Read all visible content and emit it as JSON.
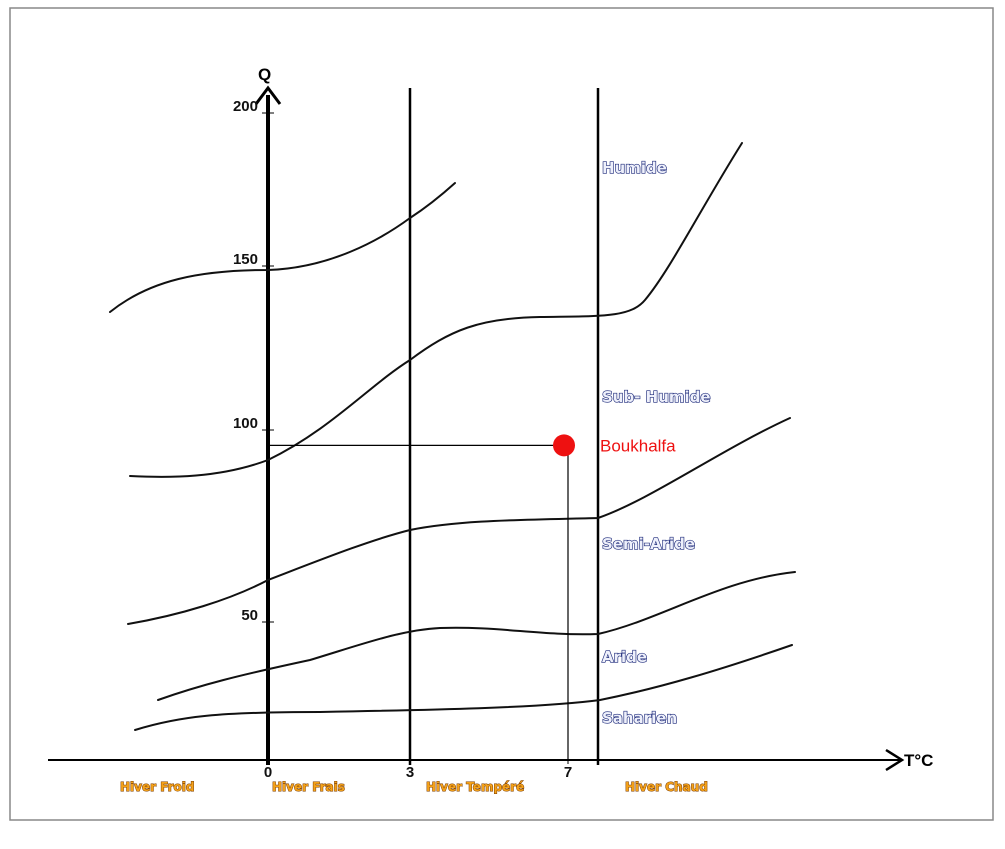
{
  "axes": {
    "y_label": "Q",
    "x_label": "T°C",
    "y_ticks": [
      50,
      100,
      150,
      200
    ],
    "x_ticks": [
      0,
      3,
      7
    ]
  },
  "zones": [
    "Humide",
    "Sub- Humide",
    "Semi-Aride",
    "Aride",
    "Saharien"
  ],
  "winters": [
    "Hiver Froid",
    "Hiver Frais",
    "Hiver Tempéré",
    "Hiver Chaud"
  ],
  "point": {
    "label": "Boukhalfa",
    "t": 7,
    "q": 96
  }
}
